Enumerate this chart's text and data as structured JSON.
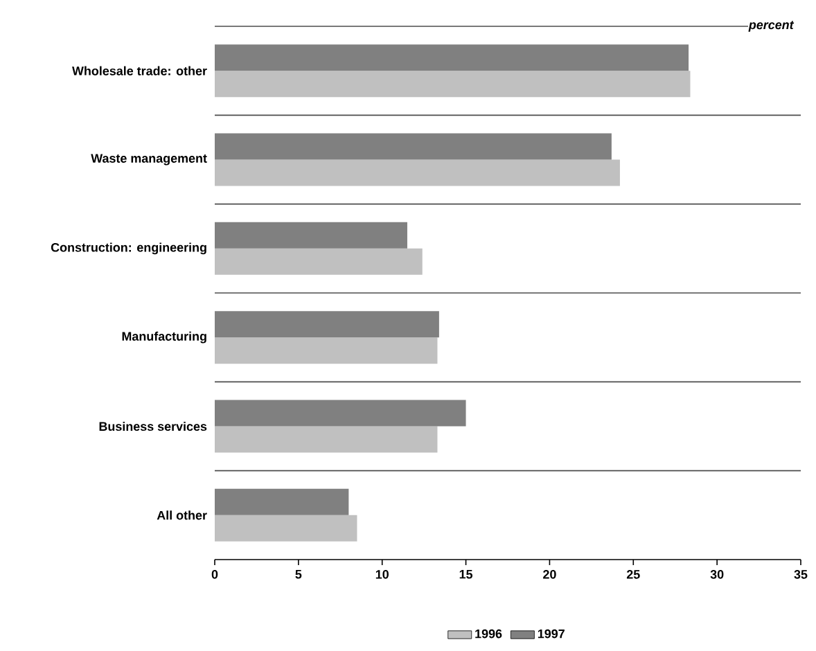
{
  "chart_data": {
    "type": "bar",
    "orientation": "horizontal",
    "xlabel": "percent",
    "categories": [
      "Wholesale trade:  other",
      "Waste management",
      "Construction: engineering",
      "Manufacturing",
      "Business services",
      "All other"
    ],
    "series": [
      {
        "name": "1996",
        "color": "#c0c0c0",
        "values": [
          28.4,
          24.2,
          12.4,
          13.3,
          13.3,
          8.5
        ]
      },
      {
        "name": "1997",
        "color": "#808080",
        "values": [
          28.3,
          23.7,
          11.5,
          13.4,
          15.0,
          8.0
        ]
      }
    ],
    "xlim": [
      0,
      35
    ],
    "xticks": [
      0,
      5,
      10,
      15,
      20,
      25,
      30,
      35
    ],
    "legend": "bottom"
  }
}
